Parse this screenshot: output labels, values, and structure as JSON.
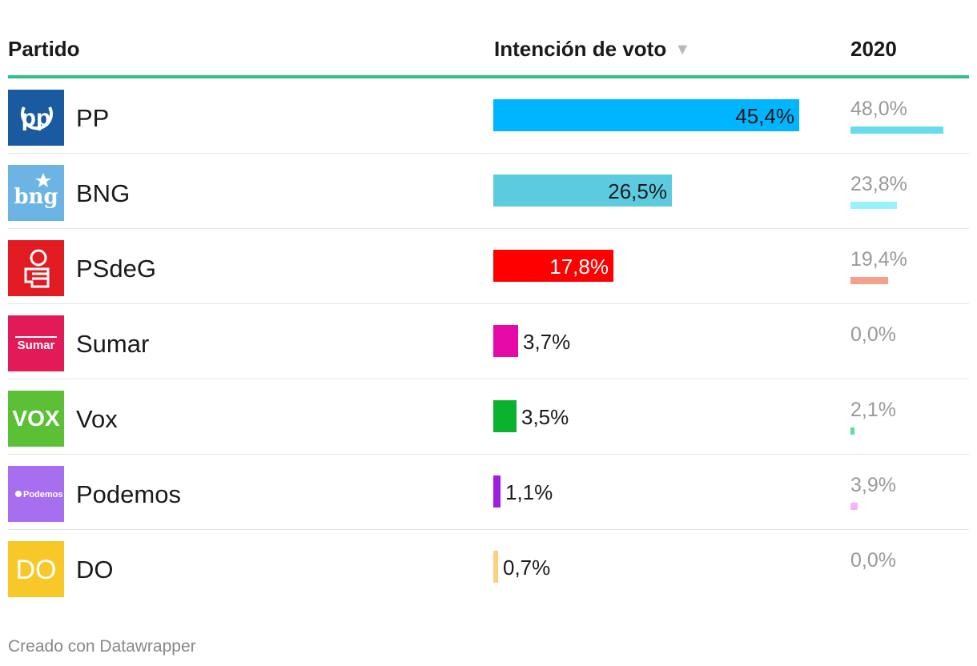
{
  "header": {
    "party": "Partido",
    "vote": "Intención de voto",
    "sort_icon": "▼",
    "prev": "2020"
  },
  "footer": {
    "credit": "Creado con Datawrapper"
  },
  "chart_data": {
    "type": "table",
    "columns": [
      "Partido",
      "Intención de voto",
      "2020"
    ],
    "rows": [
      {
        "party": "PP",
        "logo_text": "pp",
        "logo_bg": "#1a5aa0",
        "vote": 45.4,
        "vote_label": "45,4%",
        "bar_color": "#00b5ff",
        "prev": 48.0,
        "prev_label": "48,0%",
        "prev_color": "#66dcec"
      },
      {
        "party": "BNG",
        "logo_text": "bng",
        "logo_bg": "#6cb4e4",
        "vote": 26.5,
        "vote_label": "26,5%",
        "bar_color": "#5ccbe0",
        "prev": 23.8,
        "prev_label": "23,8%",
        "prev_color": "#96f2fc"
      },
      {
        "party": "PSdeG",
        "logo_text": "",
        "logo_bg": "#e21b23",
        "vote": 17.8,
        "vote_label": "17,8%",
        "bar_color": "#ff0000",
        "prev": 19.4,
        "prev_label": "19,4%",
        "prev_color": "#f4a08a"
      },
      {
        "party": "Sumar",
        "logo_text": "Sumar",
        "logo_bg": "#e21a58",
        "vote": 3.7,
        "vote_label": "3,7%",
        "bar_color": "#e60aa8",
        "prev": 0.0,
        "prev_label": "0,0%",
        "prev_color": "#cccccc"
      },
      {
        "party": "Vox",
        "logo_text": "VOX",
        "logo_bg": "#5bc035",
        "vote": 3.5,
        "vote_label": "3,5%",
        "bar_color": "#0bb22e",
        "prev": 2.1,
        "prev_label": "2,1%",
        "prev_color": "#5fdca0"
      },
      {
        "party": "Podemos",
        "logo_text": "Podemos",
        "logo_bg": "#a86ef0",
        "vote": 1.1,
        "vote_label": "1,1%",
        "bar_color": "#a01ee0",
        "prev": 3.9,
        "prev_label": "3,9%",
        "prev_color": "#f6b4f8"
      },
      {
        "party": "DO",
        "logo_text": "DO",
        "logo_bg": "#f8c828",
        "vote": 0.7,
        "vote_label": "0,7%",
        "bar_color": "#fcd080",
        "prev": 0.0,
        "prev_label": "0,0%",
        "prev_color": "#cccccc"
      }
    ]
  }
}
